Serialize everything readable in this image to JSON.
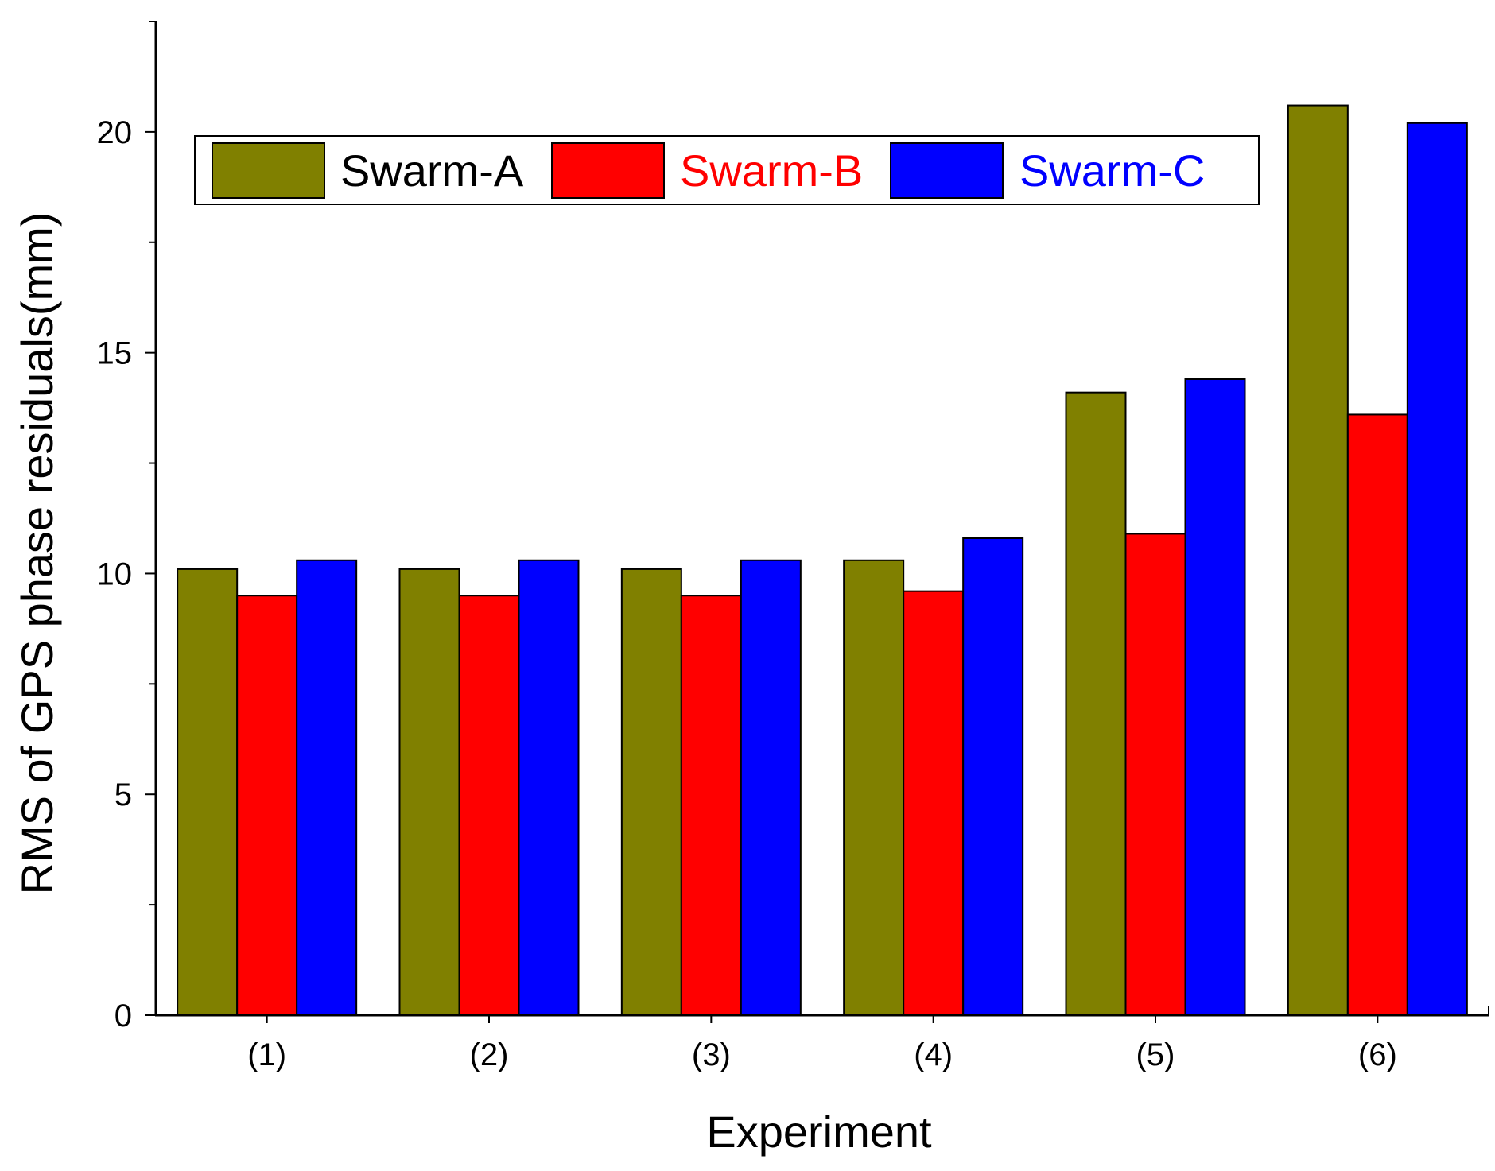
{
  "chart_data": {
    "type": "bar",
    "title": "",
    "xlabel": "Experiment",
    "ylabel": "RMS of GPS phase residuals(mm)",
    "categories": [
      "(1)",
      "(2)",
      "(3)",
      "(4)",
      "(5)",
      "(6)"
    ],
    "ylim": [
      0,
      22.5
    ],
    "yticks": [
      0,
      5,
      10,
      15,
      20
    ],
    "yticks_minor": [
      2.5,
      7.5,
      12.5,
      17.5,
      22.5
    ],
    "ytick_labels": [
      "0",
      "5",
      "10",
      "15",
      "20"
    ],
    "grid": false,
    "legend_position": "top",
    "series": [
      {
        "name": "Swarm-A",
        "color": "#808000",
        "label_color": "#000000",
        "values": [
          10.1,
          10.1,
          10.1,
          10.3,
          14.1,
          20.6
        ]
      },
      {
        "name": "Swarm-B",
        "color": "#ff0000",
        "label_color": "#ff0000",
        "values": [
          9.5,
          9.5,
          9.5,
          9.6,
          10.9,
          13.6
        ]
      },
      {
        "name": "Swarm-C",
        "color": "#0000ff",
        "label_color": "#0000ff",
        "values": [
          10.3,
          10.3,
          10.3,
          10.8,
          14.4,
          20.2
        ]
      }
    ]
  }
}
